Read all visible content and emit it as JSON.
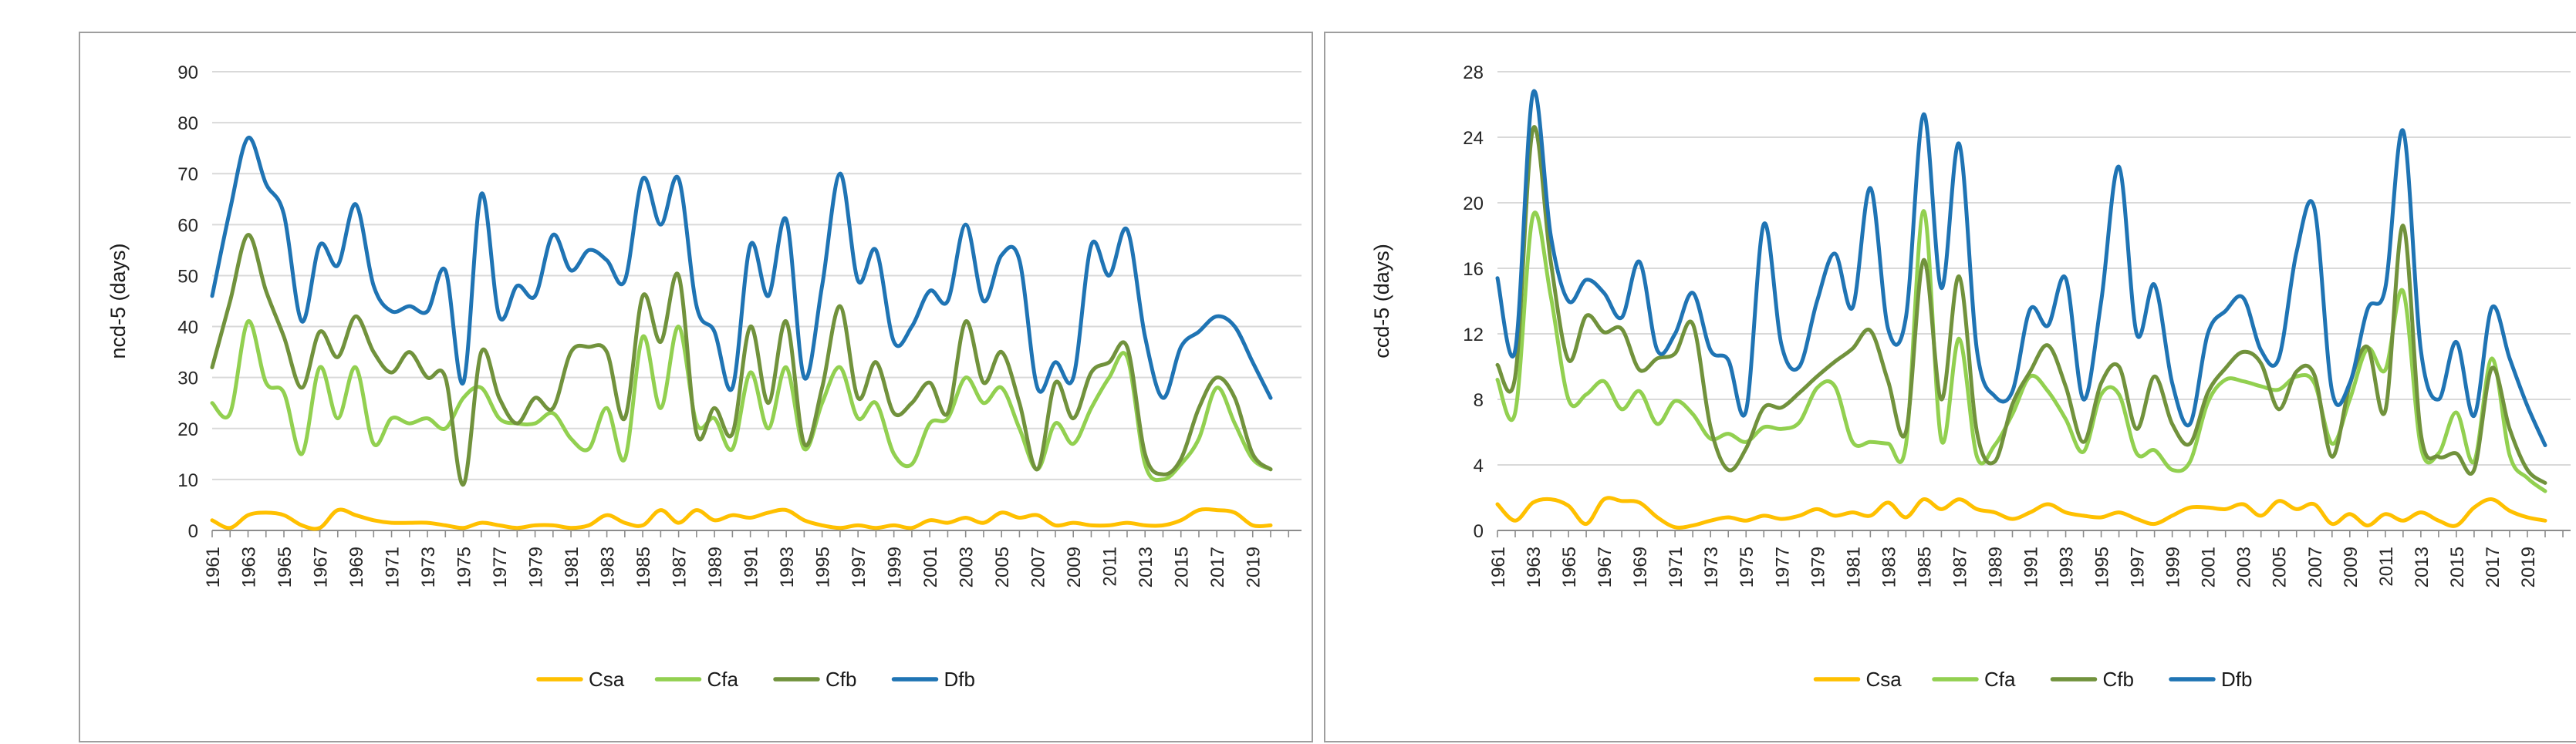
{
  "chart_data": [
    {
      "type": "line",
      "panel_id": "panel-ncd5",
      "title": "",
      "xlabel": "",
      "y_title": "ncd-5 (days)",
      "ylim": [
        0,
        90
      ],
      "y_ticks": [
        90,
        80,
        70,
        60,
        50,
        40,
        30,
        20,
        10,
        0
      ],
      "grid": "horizontal",
      "legend_position": "bottom",
      "years_start": 1961,
      "years_end": 2020,
      "x_tick_labels": [
        "1961",
        "1963",
        "1965",
        "1967",
        "1969",
        "1971",
        "1973",
        "1975",
        "1977",
        "1979",
        "1981",
        "1983",
        "1985",
        "1987",
        "1989",
        "1991",
        "1993",
        "1995",
        "1997",
        "1999",
        "2001",
        "2003",
        "2005",
        "2007",
        "2009",
        "2011",
        "2013",
        "2015",
        "2017",
        "2019"
      ],
      "series": [
        {
          "name": "Csa",
          "color": "#FFC000",
          "values": [
            2,
            0.5,
            3,
            3.5,
            3,
            1,
            0.5,
            4,
            3,
            2,
            1.5,
            1.5,
            1.5,
            1,
            0.5,
            1.5,
            1,
            0.5,
            1,
            1,
            0.5,
            1,
            3,
            1.5,
            1,
            4,
            1.5,
            4,
            2,
            3,
            2.5,
            3.5,
            4,
            2,
            1,
            0.5,
            1,
            0.5,
            1,
            0.5,
            2,
            1.5,
            2.5,
            1.5,
            3.5,
            2.5,
            3,
            1,
            1.5,
            1,
            1,
            1.5,
            1,
            1,
            2,
            4,
            4,
            3.5,
            1,
            1
          ]
        },
        {
          "name": "Cfa",
          "color": "#92D050",
          "values": [
            25,
            23,
            41,
            29,
            27,
            15,
            32,
            22,
            32,
            17,
            22,
            21,
            22,
            20,
            26,
            28,
            22,
            21,
            21,
            23,
            18,
            16,
            24,
            14,
            38,
            24,
            40,
            21,
            22,
            16,
            31,
            20,
            32,
            16,
            25,
            32,
            22,
            25,
            15,
            13,
            21,
            22,
            30,
            25,
            28,
            20,
            12,
            21,
            17,
            24,
            30,
            34,
            13,
            10,
            13,
            18,
            28,
            21,
            14,
            12
          ]
        },
        {
          "name": "Cfb",
          "color": "#71923C",
          "values": [
            32,
            45,
            58,
            47,
            38,
            28,
            39,
            34,
            42,
            35,
            31,
            35,
            30,
            30,
            9,
            35,
            26,
            21,
            26,
            24,
            35,
            36,
            35,
            22,
            46,
            37,
            50,
            19,
            24,
            19,
            40,
            25,
            41,
            17,
            28,
            44,
            26,
            33,
            23,
            25,
            29,
            23,
            41,
            29,
            35,
            25,
            12,
            29,
            22,
            31,
            33,
            36,
            15,
            11,
            14,
            24,
            30,
            26,
            15,
            12
          ]
        },
        {
          "name": "Dfb",
          "color": "#1F74B4",
          "values": [
            46,
            63,
            77,
            68,
            62,
            41,
            56,
            52,
            64,
            48,
            43,
            44,
            43,
            51,
            29,
            66,
            42,
            48,
            46,
            58,
            51,
            55,
            53,
            49,
            69,
            60,
            69,
            44,
            39,
            28,
            56,
            46,
            61,
            30,
            48,
            70,
            49,
            55,
            37,
            40,
            47,
            45,
            60,
            45,
            54,
            53,
            28,
            33,
            30,
            56,
            50,
            59,
            38,
            26,
            36,
            39,
            42,
            40,
            33,
            26
          ]
        }
      ]
    },
    {
      "type": "line",
      "panel_id": "panel-ccd5",
      "title": "",
      "xlabel": "",
      "y_title": "ccd-5 (days)",
      "ylim": [
        0,
        28
      ],
      "y_ticks": [
        28,
        24,
        20,
        16,
        12,
        8,
        4,
        0
      ],
      "grid": "horizontal",
      "legend_position": "bottom",
      "years_start": 1961,
      "years_end": 2020,
      "x_tick_labels": [
        "1961",
        "1963",
        "1965",
        "1967",
        "1969",
        "1971",
        "1973",
        "1975",
        "1977",
        "1979",
        "1981",
        "1983",
        "1985",
        "1987",
        "1989",
        "1991",
        "1993",
        "1995",
        "1997",
        "1999",
        "2001",
        "2003",
        "2005",
        "2007",
        "2009",
        "2011",
        "2013",
        "2015",
        "2017",
        "2019"
      ],
      "series": [
        {
          "name": "Csa",
          "color": "#FFC000",
          "values": [
            1.6,
            0.6,
            1.7,
            1.9,
            1.5,
            0.4,
            1.9,
            1.8,
            1.7,
            0.8,
            0.2,
            0.3,
            0.6,
            0.8,
            0.6,
            0.9,
            0.7,
            0.9,
            1.3,
            0.9,
            1.1,
            0.9,
            1.7,
            0.8,
            1.9,
            1.3,
            1.9,
            1.3,
            1.1,
            0.7,
            1.1,
            1.6,
            1.1,
            0.9,
            0.8,
            1.1,
            0.7,
            0.4,
            0.9,
            1.4,
            1.4,
            1.3,
            1.6,
            0.9,
            1.8,
            1.3,
            1.6,
            0.4,
            1,
            0.3,
            1,
            0.6,
            1.1,
            0.6,
            0.3,
            1.4,
            1.9,
            1.2,
            0.8,
            0.6
          ]
        },
        {
          "name": "Cfa",
          "color": "#92D050",
          "values": [
            9.2,
            7.2,
            19.2,
            14.3,
            8,
            8.3,
            9.1,
            7.4,
            8.5,
            6.5,
            7.9,
            7.1,
            5.6,
            5.9,
            5.4,
            6.3,
            6.2,
            6.6,
            8.7,
            8.8,
            5.4,
            5.4,
            5.3,
            5.2,
            19.5,
            5.5,
            11.7,
            4.5,
            5.2,
            7.1,
            9.4,
            8.5,
            6.8,
            4.8,
            8.3,
            8.3,
            4.7,
            4.9,
            3.7,
            4.2,
            7.8,
            9.2,
            9.1,
            8.8,
            8.6,
            9.4,
            9,
            5.3,
            8,
            11.1,
            9.8,
            14.6,
            5.1,
            4.7,
            7.2,
            4.2,
            10.5,
            4.6,
            3.2,
            2.4
          ]
        },
        {
          "name": "Cfb",
          "color": "#71923C",
          "values": [
            10.1,
            9.4,
            24.5,
            16.4,
            10.4,
            13.1,
            12.1,
            12.3,
            9.8,
            10.5,
            10.8,
            12.6,
            6.3,
            3.7,
            5,
            7.5,
            7.5,
            8.4,
            9.4,
            10.3,
            11.1,
            12.2,
            9.1,
            6,
            16.5,
            8,
            15.5,
            6,
            4.2,
            7.7,
            9.7,
            11.3,
            8.8,
            5.4,
            9,
            10,
            6.2,
            9.4,
            6.5,
            5.3,
            8.4,
            9.9,
            10.9,
            10.2,
            7.4,
            9.7,
            9.5,
            4.5,
            8.9,
            11.2,
            7.3,
            18.6,
            5.9,
            4.5,
            4.7,
            3.7,
            9.9,
            6.2,
            3.7,
            2.9
          ]
        },
        {
          "name": "Dfb",
          "color": "#1F74B4",
          "values": [
            15.4,
            11,
            26.7,
            18,
            14,
            15.3,
            14.5,
            13,
            16.4,
            11,
            12,
            14.5,
            11,
            10.4,
            7.3,
            18.7,
            11.3,
            10,
            14,
            16.9,
            13.6,
            20.9,
            12.3,
            13,
            25.4,
            14.8,
            23.6,
            11,
            8.2,
            8.5,
            13.5,
            12.5,
            15.4,
            8,
            14,
            22.2,
            12,
            15,
            9,
            6.5,
            12,
            13.4,
            14.2,
            11,
            10.5,
            17,
            19.7,
            8.5,
            9,
            13.5,
            14.8,
            24.4,
            11,
            8,
            11.5,
            7,
            13.6,
            10.5,
            7.6,
            5.2
          ]
        }
      ]
    }
  ],
  "style": {
    "gridline_color": "#D9D9D9",
    "axis_color": "#8C8C8C",
    "label_color": "#262626",
    "panel_border_color": "#9E9E9E",
    "background": "#FFFFFF"
  }
}
